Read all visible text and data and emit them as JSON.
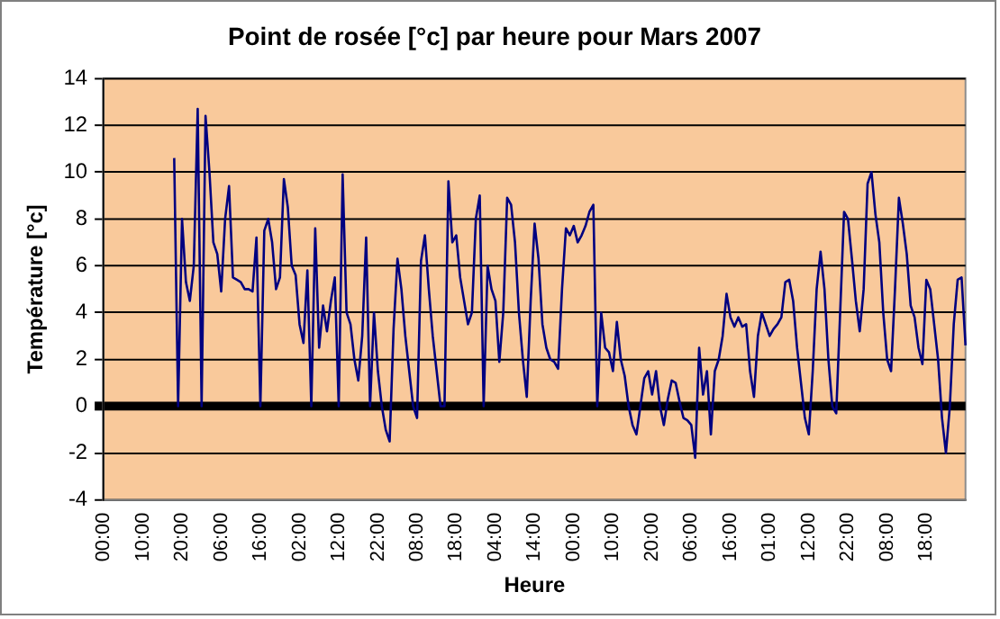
{
  "chart_data": {
    "type": "line",
    "title": "Point de rosée [°c] par heure pour Mars 2007",
    "xlabel": "Heure",
    "ylabel": "Température [°c]",
    "ylim": [
      -4,
      14
    ],
    "yticks": [
      -4,
      -2,
      0,
      2,
      4,
      6,
      8,
      10,
      12,
      14
    ],
    "categories": [
      "00:00",
      null,
      null,
      null,
      null,
      null,
      null,
      null,
      null,
      null,
      "10:00",
      null,
      null,
      null,
      null,
      null,
      null,
      null,
      null,
      null,
      "20:00",
      null,
      null,
      null,
      null,
      null,
      null,
      null,
      null,
      null,
      "06:00",
      null,
      null,
      null,
      null,
      null,
      null,
      null,
      null,
      null,
      "16:00",
      null,
      null,
      null,
      null,
      null,
      null,
      null,
      null,
      null,
      "02:00",
      null,
      null,
      null,
      null,
      null,
      null,
      null,
      null,
      null,
      "12:00",
      null,
      null,
      null,
      null,
      null,
      null,
      null,
      null,
      null,
      "22:00",
      null,
      null,
      null,
      null,
      null,
      null,
      null,
      null,
      null,
      "08:00",
      null,
      null,
      null,
      null,
      null,
      null,
      null,
      null,
      null,
      "18:00",
      null,
      null,
      null,
      null,
      null,
      null,
      null,
      null,
      null,
      "04:00",
      null,
      null,
      null,
      null,
      null,
      null,
      null,
      null,
      null,
      "14:00",
      null,
      null,
      null,
      null,
      null,
      null,
      null,
      null,
      null,
      "00:00",
      null,
      null,
      null,
      null,
      null,
      null,
      null,
      null,
      null,
      "10:00",
      null,
      null,
      null,
      null,
      null,
      null,
      null,
      null,
      null,
      "20:00",
      null,
      null,
      null,
      null,
      null,
      null,
      null,
      null,
      null,
      "06:00",
      null,
      null,
      null,
      null,
      null,
      null,
      null,
      null,
      null,
      "16:00",
      null,
      null,
      null,
      null,
      null,
      null,
      null,
      null,
      null,
      "01:00",
      null,
      null,
      null,
      null,
      null,
      null,
      null,
      null,
      null,
      "12:00",
      null,
      null,
      null,
      null,
      null,
      null,
      null,
      null,
      null,
      "22:00",
      null,
      null,
      null,
      null,
      null,
      null,
      null,
      null,
      null,
      "08:00",
      null,
      null,
      null,
      null,
      null,
      null,
      null,
      null,
      null,
      "18:00",
      null,
      null,
      null,
      null,
      null,
      null,
      null,
      null,
      null,
      null
    ],
    "series": [
      {
        "color": "#000080",
        "values": [
          null,
          null,
          null,
          null,
          null,
          null,
          null,
          null,
          null,
          null,
          null,
          null,
          null,
          null,
          null,
          null,
          null,
          null,
          10.6,
          0,
          8.0,
          5.3,
          4.5,
          6.0,
          12.7,
          0,
          12.4,
          10.0,
          7.0,
          6.5,
          4.9,
          8.0,
          9.4,
          5.5,
          5.4,
          5.3,
          5.0,
          5.0,
          4.9,
          7.2,
          0,
          7.5,
          8.0,
          7.0,
          5.0,
          5.5,
          9.7,
          8.5,
          6.0,
          5.6,
          3.5,
          2.7,
          5.8,
          0,
          7.6,
          2.5,
          4.3,
          3.2,
          4.5,
          5.5,
          0,
          9.9,
          4.0,
          3.5,
          2.0,
          1.1,
          3.0,
          7.2,
          0,
          4.0,
          1.5,
          0,
          -1.0,
          -1.5,
          3.3,
          6.3,
          5.0,
          3.0,
          1.5,
          0,
          -0.5,
          6.2,
          7.3,
          5.0,
          3.0,
          1.5,
          0,
          0,
          9.6,
          7.0,
          7.3,
          5.5,
          4.5,
          3.5,
          4.0,
          8.0,
          9.0,
          0,
          6.0,
          5.0,
          4.5,
          1.9,
          4.0,
          8.9,
          8.6,
          7.0,
          4.0,
          2.0,
          0.4,
          4.5,
          7.8,
          6.3,
          3.5,
          2.5,
          2.0,
          1.9,
          1.6,
          5.0,
          7.6,
          7.3,
          7.7,
          7.0,
          7.3,
          7.7,
          8.3,
          8.6,
          0,
          4.0,
          2.5,
          2.3,
          1.5,
          3.6,
          2.0,
          1.3,
          0,
          -0.8,
          -1.2,
          0.0,
          1.2,
          1.5,
          0.5,
          1.5,
          0.0,
          -0.8,
          0.3,
          1.1,
          1.0,
          0.2,
          -0.5,
          -0.6,
          -0.8,
          -2.2,
          2.5,
          0.5,
          1.5,
          -1.2,
          1.5,
          2.0,
          3.0,
          4.8,
          3.8,
          3.4,
          3.8,
          3.4,
          3.5,
          1.5,
          0.4,
          3.0,
          4.0,
          3.5,
          3.0,
          3.3,
          3.5,
          3.8,
          5.3,
          5.4,
          4.5,
          2.5,
          1.0,
          -0.5,
          -1.2,
          1.5,
          5.0,
          6.6,
          5.0,
          2.0,
          0,
          -0.3,
          4.0,
          8.3,
          8.0,
          6.3,
          4.5,
          3.2,
          5.0,
          9.5,
          10.0,
          8.2,
          7.0,
          4.0,
          2.0,
          1.5,
          5.0,
          8.9,
          7.8,
          6.5,
          4.3,
          3.8,
          2.5,
          1.8,
          5.4,
          5.0,
          3.5,
          2.0,
          -0.5,
          -2.0,
          0,
          3.5,
          5.4,
          5.5,
          2.6
        ]
      }
    ],
    "grid": "y",
    "legend": false,
    "marker": "none",
    "line_style": "solid"
  }
}
